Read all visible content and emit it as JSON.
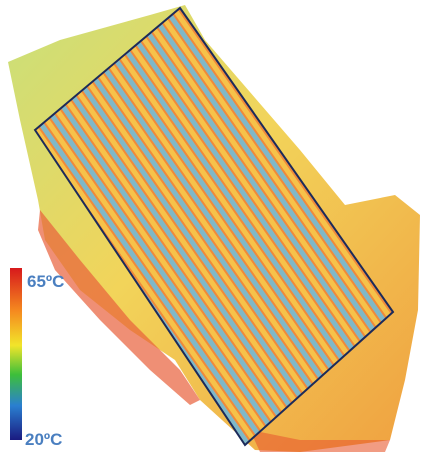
{
  "legend": {
    "max_label": "65ºC",
    "min_label": "20ºC"
  }
}
